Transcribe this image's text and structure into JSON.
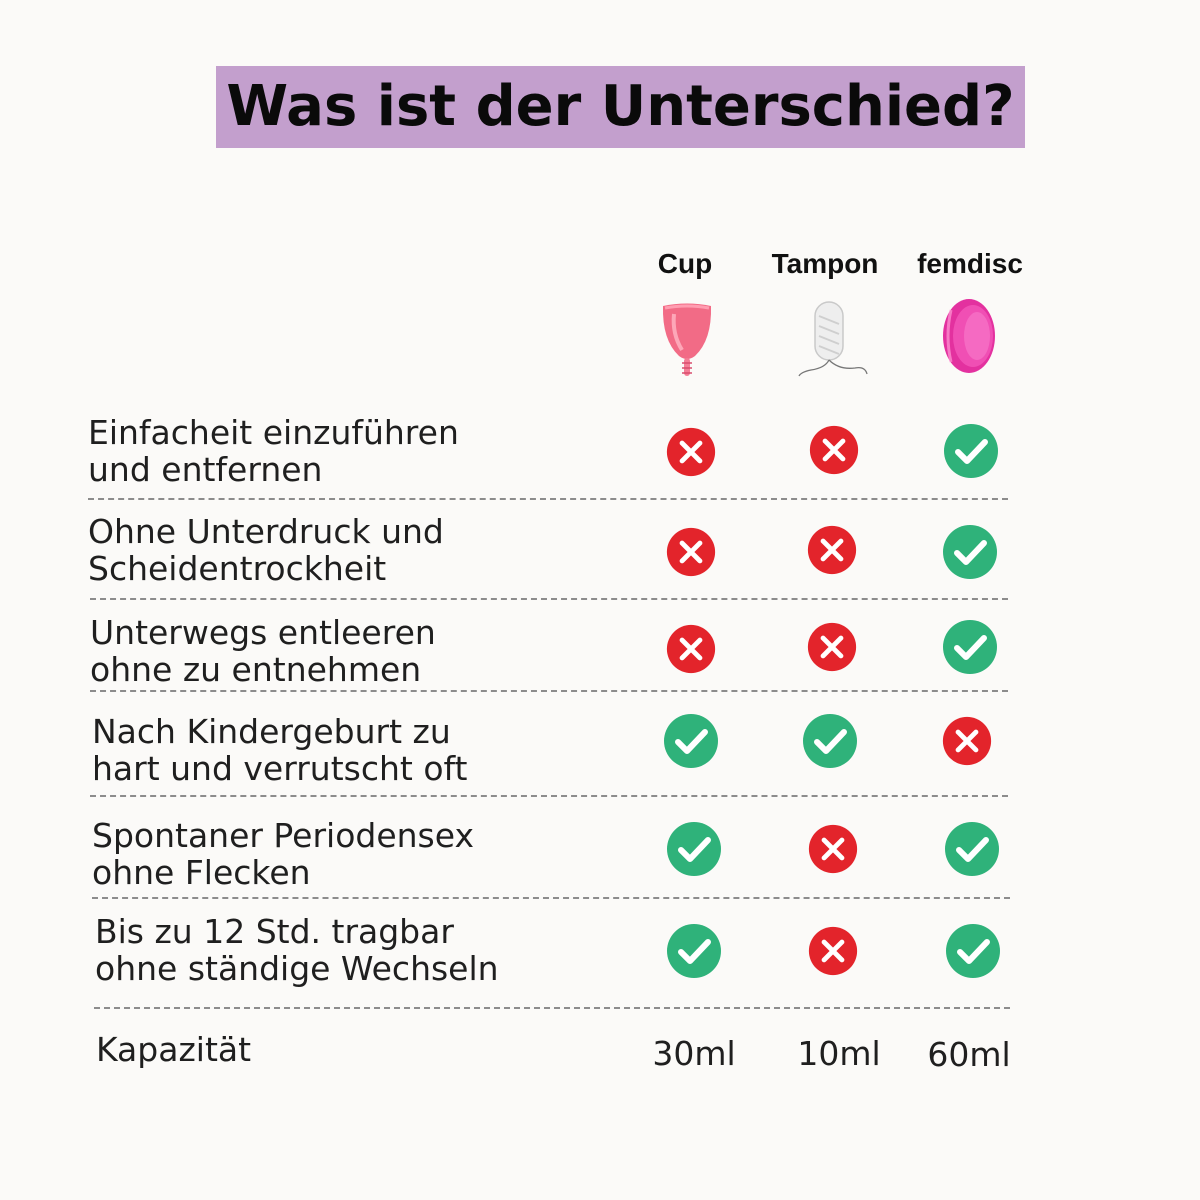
{
  "title": "Was ist der Unterschied?",
  "columns": [
    {
      "label": "Cup",
      "icon": "menstrual-cup-icon"
    },
    {
      "label": "Tampon",
      "icon": "tampon-icon"
    },
    {
      "label": "femdisc",
      "icon": "menstrual-disc-icon"
    }
  ],
  "rows": [
    {
      "line1": "Einfacheit einzuführen",
      "line2": "und entfernen",
      "values": [
        false,
        false,
        true
      ]
    },
    {
      "line1": "Ohne Unterdruck und",
      "line2": "Scheidentrockheit",
      "values": [
        false,
        false,
        true
      ]
    },
    {
      "line1": "Unterwegs entleeren",
      "line2": "ohne zu entnehmen",
      "values": [
        false,
        false,
        true
      ]
    },
    {
      "line1": "Nach Kindergeburt zu",
      "line2": "hart und verrutscht oft",
      "values": [
        true,
        true,
        false
      ]
    },
    {
      "line1": "Spontaner Periodensex",
      "line2": "ohne Flecken",
      "values": [
        true,
        false,
        true
      ]
    },
    {
      "line1": "Bis zu 12 Std. tragbar",
      "line2": "ohne ständige Wechseln",
      "values": [
        true,
        false,
        true
      ]
    }
  ],
  "capacity": {
    "label": "Kapazität",
    "values": [
      "30ml",
      "10ml",
      "60ml"
    ]
  },
  "colors": {
    "title_background": "#c39fcd",
    "check": "#2fb27a",
    "cross": "#e3242b",
    "cup_pink": "#f26b86",
    "disc_magenta": "#e3319f"
  }
}
